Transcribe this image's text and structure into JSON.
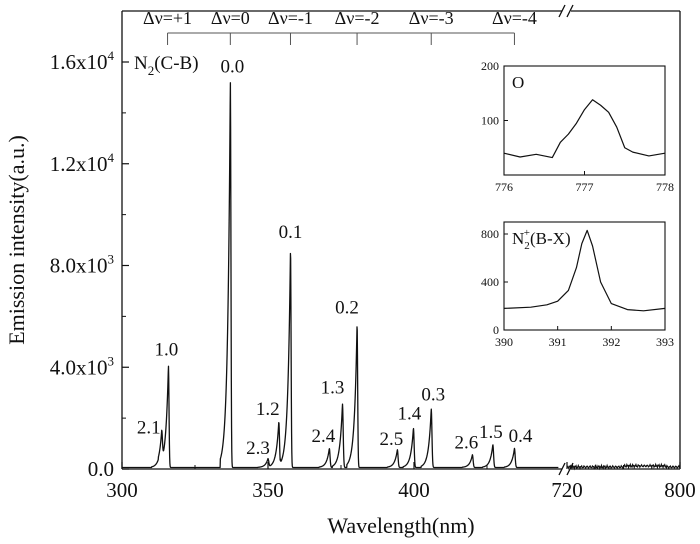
{
  "chart_data": {
    "type": "line",
    "xlabel": "Wavelength(nm)",
    "ylabel": "Emission intensity(a.u.)",
    "x_break": "//",
    "x_ticks": [
      "300",
      "350",
      "400",
      "720",
      "800"
    ],
    "y_ticks": [
      {
        "value": 0,
        "label": "0.0"
      },
      {
        "value": 4000,
        "label": "4.0x10",
        "sup": "3"
      },
      {
        "value": 8000,
        "label": "8.0x10",
        "sup": "3"
      },
      {
        "value": 12000,
        "label": "1.2x10",
        "sup": "4"
      },
      {
        "value": 16000,
        "label": "1.6x10",
        "sup": "4"
      }
    ],
    "ylim": [
      0,
      17500
    ],
    "system_label": "N",
    "system_sub": "2",
    "system_rest": "(C-B)",
    "sequences": [
      {
        "label": "Δν=+1",
        "x": 315.6
      },
      {
        "label": "Δν=0",
        "x": 337.1
      },
      {
        "label": "Δν=-1",
        "x": 357.7
      },
      {
        "label": "Δν=-2",
        "x": 380.5
      },
      {
        "label": "Δν=-3",
        "x": 405.9
      },
      {
        "label": "Δν=-4",
        "x": 434.4
      }
    ],
    "peaks": [
      {
        "label": "2.1",
        "x": 313.6,
        "y": 1150
      },
      {
        "label": "1.0",
        "x": 315.9,
        "y": 4000
      },
      {
        "label": "0.0",
        "x": 337.1,
        "y": 15200
      },
      {
        "label": "2.3",
        "x": 350.0,
        "y": 350
      },
      {
        "label": "1.2",
        "x": 353.7,
        "y": 1800
      },
      {
        "label": "0.1",
        "x": 357.7,
        "y": 8600
      },
      {
        "label": "2.4",
        "x": 371.0,
        "y": 750
      },
      {
        "label": "1.3",
        "x": 375.5,
        "y": 2500
      },
      {
        "label": "0.2",
        "x": 380.5,
        "y": 5650
      },
      {
        "label": "2.5",
        "x": 394.3,
        "y": 700
      },
      {
        "label": "1.4",
        "x": 399.8,
        "y": 1550
      },
      {
        "label": "0.3",
        "x": 405.9,
        "y": 2300
      },
      {
        "label": "2.6",
        "x": 420.0,
        "y": 500
      },
      {
        "label": "1.5",
        "x": 427.0,
        "y": 900
      },
      {
        "label": "0.4",
        "x": 434.4,
        "y": 750
      }
    ],
    "insets": [
      {
        "label": "O",
        "x_ticks": [
          "776",
          "777",
          "778"
        ],
        "xlim": [
          776,
          778
        ],
        "y_ticks": [
          "100",
          "200"
        ],
        "ylim": [
          0,
          200
        ],
        "x": [
          776.0,
          776.2,
          776.4,
          776.6,
          776.7,
          776.8,
          776.9,
          777.0,
          777.1,
          777.2,
          777.3,
          777.4,
          777.5,
          777.6,
          777.8,
          778.0
        ],
        "y": [
          40,
          33,
          38,
          32,
          60,
          75,
          95,
          120,
          138,
          128,
          115,
          88,
          50,
          42,
          35,
          40
        ]
      },
      {
        "label": "N",
        "label_sub": "2",
        "label_sup": "+",
        "label_rest": "(B-X)",
        "x_ticks": [
          "390",
          "391",
          "392",
          "393"
        ],
        "xlim": [
          390,
          393
        ],
        "y_ticks": [
          "0",
          "400",
          "800"
        ],
        "ylim": [
          0,
          900
        ],
        "x": [
          390.0,
          390.5,
          390.8,
          391.0,
          391.2,
          391.35,
          391.45,
          391.55,
          391.65,
          391.8,
          392.0,
          392.3,
          392.6,
          393.0
        ],
        "y": [
          180,
          190,
          210,
          240,
          330,
          520,
          720,
          830,
          700,
          400,
          220,
          170,
          160,
          180
        ]
      }
    ]
  }
}
